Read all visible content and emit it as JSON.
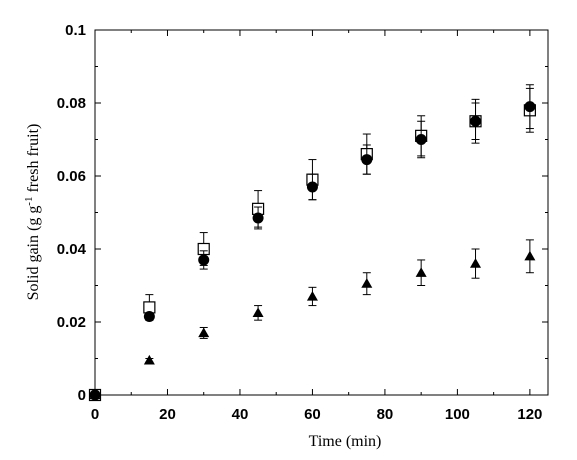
{
  "chart_data": {
    "type": "scatter",
    "title": "",
    "xlabel": "Time (min)",
    "ylabel_parts": {
      "main": "Solid gain (g g",
      "sup": "-1",
      "rest": " fresh fruit)"
    },
    "xlim": [
      0,
      125
    ],
    "ylim": [
      0,
      0.1
    ],
    "xticks": [
      0,
      20,
      40,
      60,
      80,
      100,
      120
    ],
    "yticks": [
      0,
      0.02,
      0.04,
      0.06,
      0.08,
      0.1
    ],
    "ytick_labels": [
      "0",
      "0.02",
      "0.04",
      "0.06",
      "0.08",
      "0.1"
    ],
    "grid": false,
    "legend": "none",
    "series": [
      {
        "marker": "open-square",
        "x": [
          0,
          15,
          30,
          45,
          60,
          75,
          90,
          105,
          120
        ],
        "y": [
          0,
          0.024,
          0.04,
          0.051,
          0.059,
          0.066,
          0.071,
          0.075,
          0.078
        ],
        "err": [
          0,
          0.0035,
          0.0045,
          0.005,
          0.0055,
          0.0055,
          0.0055,
          0.006,
          0.006
        ]
      },
      {
        "marker": "filled-circle",
        "x": [
          0,
          15,
          30,
          45,
          60,
          75,
          90,
          105,
          120
        ],
        "y": [
          0,
          0.0215,
          0.037,
          0.0485,
          0.057,
          0.0645,
          0.07,
          0.075,
          0.079
        ],
        "err": [
          0,
          0.001,
          0.0025,
          0.003,
          0.0035,
          0.004,
          0.005,
          0.005,
          0.006
        ]
      },
      {
        "marker": "filled-triangle",
        "x": [
          0,
          15,
          30,
          45,
          60,
          75,
          90,
          105,
          120
        ],
        "y": [
          0,
          0.0095,
          0.017,
          0.0225,
          0.027,
          0.0305,
          0.0335,
          0.036,
          0.038
        ],
        "err": [
          0,
          0.0005,
          0.0015,
          0.002,
          0.0025,
          0.003,
          0.0035,
          0.004,
          0.0045
        ]
      }
    ]
  }
}
